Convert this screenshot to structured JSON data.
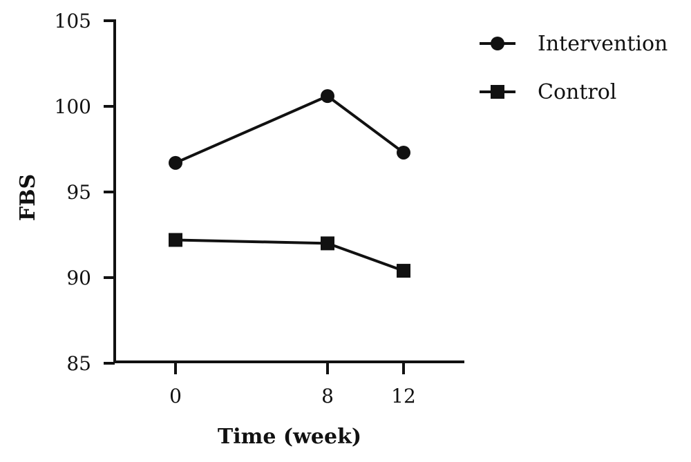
{
  "chart_data": {
    "type": "line",
    "xlabel": "Time (week)",
    "ylabel": "FBS",
    "x": [
      0,
      8,
      12
    ],
    "x_tick_labels": [
      "0",
      "8",
      "12"
    ],
    "xlim": [
      -3.2,
      15.2
    ],
    "ylim": [
      85,
      105
    ],
    "y_ticks": [
      85,
      90,
      95,
      100,
      105
    ],
    "y_tick_labels": [
      "85",
      "90",
      "95",
      "100",
      "105"
    ],
    "grid": false,
    "legend_position": "top-right",
    "series": [
      {
        "name": "Intervention",
        "marker": "circle",
        "color": "#111111",
        "values": [
          96.7,
          100.6,
          97.3
        ]
      },
      {
        "name": "Control",
        "marker": "square",
        "color": "#111111",
        "values": [
          92.2,
          92.0,
          90.4
        ]
      }
    ]
  }
}
